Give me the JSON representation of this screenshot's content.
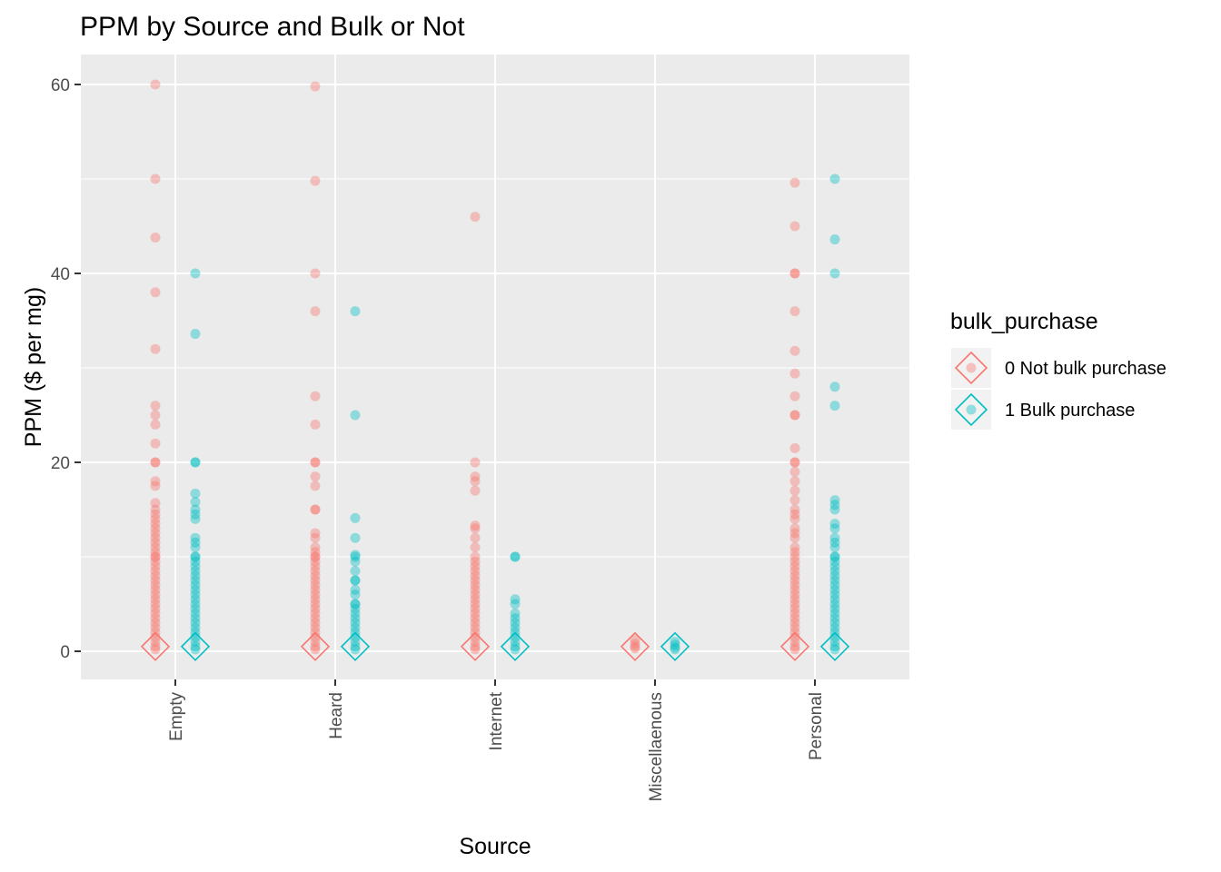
{
  "chart_data": {
    "type": "scatter",
    "title": "PPM by Source and Bulk or Not",
    "xlabel": "Source",
    "ylabel": "PPM ($ per mg)",
    "categories": [
      "Empty",
      "Heard",
      "Internet",
      "Miscellaenous",
      "Personal"
    ],
    "yticks": [
      0,
      20,
      40,
      60
    ],
    "ylim": [
      -3,
      63
    ],
    "grid": true,
    "legend": {
      "title": "bulk_purchase",
      "placement": "right",
      "entries": [
        "0 Not bulk purchase",
        "1 Bulk purchase"
      ]
    },
    "series": [
      {
        "name": "0 Not bulk purchase",
        "color": "#F8766D",
        "marker": "circle",
        "summary_marker": "diamond",
        "summary_values": [
          0.5,
          0.5,
          0.5,
          0.5,
          0.5
        ],
        "values": [
          [
            60,
            50,
            43.8,
            38,
            32,
            26,
            25,
            24,
            22,
            20,
            20,
            18,
            17.5,
            15.7,
            15,
            14.5,
            14,
            13.5,
            13,
            12.5,
            12,
            11.5,
            11,
            10.5,
            10,
            10,
            9.5,
            9,
            8.5,
            8,
            7.5,
            7,
            6.5,
            6,
            5.5,
            5,
            4.5,
            4,
            3.5,
            3,
            2.5,
            2,
            1.5,
            1,
            0.5,
            0.2
          ],
          [
            59.8,
            49.8,
            40,
            36,
            27,
            24,
            20,
            20,
            18.5,
            17.5,
            15,
            15,
            12.5,
            12,
            11,
            10.5,
            10,
            10,
            9.5,
            9,
            8.5,
            8,
            7.5,
            7,
            6.5,
            6,
            5.5,
            5,
            4.5,
            4,
            3.5,
            3,
            2.5,
            2,
            1.5,
            1,
            0.5,
            0.2
          ],
          [
            46,
            20,
            18.5,
            18,
            17,
            13.3,
            13,
            12,
            11,
            10,
            9.5,
            9,
            8.5,
            8,
            7.5,
            7,
            6.5,
            6,
            5.5,
            5,
            4.5,
            4,
            3.5,
            3,
            2.5,
            2,
            1.5,
            1,
            0.5,
            0.2
          ],
          [
            1.2,
            0.8,
            0.5,
            0.3
          ],
          [
            49.6,
            45,
            40,
            40,
            36,
            31.8,
            29.4,
            27,
            25,
            25,
            21.5,
            20,
            20,
            19,
            18,
            17,
            16,
            15,
            14.5,
            14,
            13,
            12.5,
            12,
            11,
            10.5,
            10,
            9.5,
            9,
            8.5,
            8,
            7.5,
            7,
            6.5,
            6,
            5.5,
            5,
            4.5,
            4,
            3.5,
            3,
            2.5,
            2,
            1.5,
            1,
            0.5,
            0.2
          ]
        ]
      },
      {
        "name": "1 Bulk purchase",
        "color": "#00BFC4",
        "marker": "circle",
        "summary_marker": "diamond",
        "summary_values": [
          0.5,
          0.5,
          0.5,
          0.5,
          0.5
        ],
        "values": [
          [
            40,
            33.6,
            20,
            20,
            16.7,
            15.8,
            15,
            14.5,
            14,
            12,
            11.5,
            11,
            10,
            10,
            9.5,
            9,
            8.5,
            8,
            7.5,
            7,
            6.5,
            6,
            5.5,
            5,
            4.5,
            4,
            3.5,
            3,
            2.5,
            2,
            1.5,
            1,
            0.5,
            0.2
          ],
          [
            36,
            25,
            14.1,
            12,
            10.2,
            10,
            9.5,
            8.5,
            7.5,
            7.5,
            6.5,
            6,
            5,
            5,
            4.5,
            4,
            3.5,
            3,
            2.5,
            2,
            1.5,
            1,
            0.5,
            0.2
          ],
          [
            10,
            10,
            5.5,
            5,
            4,
            3.5,
            3,
            2.5,
            2,
            1.5,
            1,
            0.5,
            0.2
          ],
          [
            1,
            0.7,
            0.4,
            0.2
          ],
          [
            50,
            43.6,
            40,
            28,
            26,
            16,
            15.5,
            15,
            13.5,
            13,
            12,
            11.5,
            11,
            10,
            10,
            9.5,
            9,
            8.5,
            8,
            7.5,
            7,
            6.5,
            6,
            5.5,
            5,
            4.5,
            4,
            3.5,
            3,
            2.5,
            2,
            1.5,
            1,
            0.5,
            0.2
          ]
        ]
      }
    ]
  }
}
